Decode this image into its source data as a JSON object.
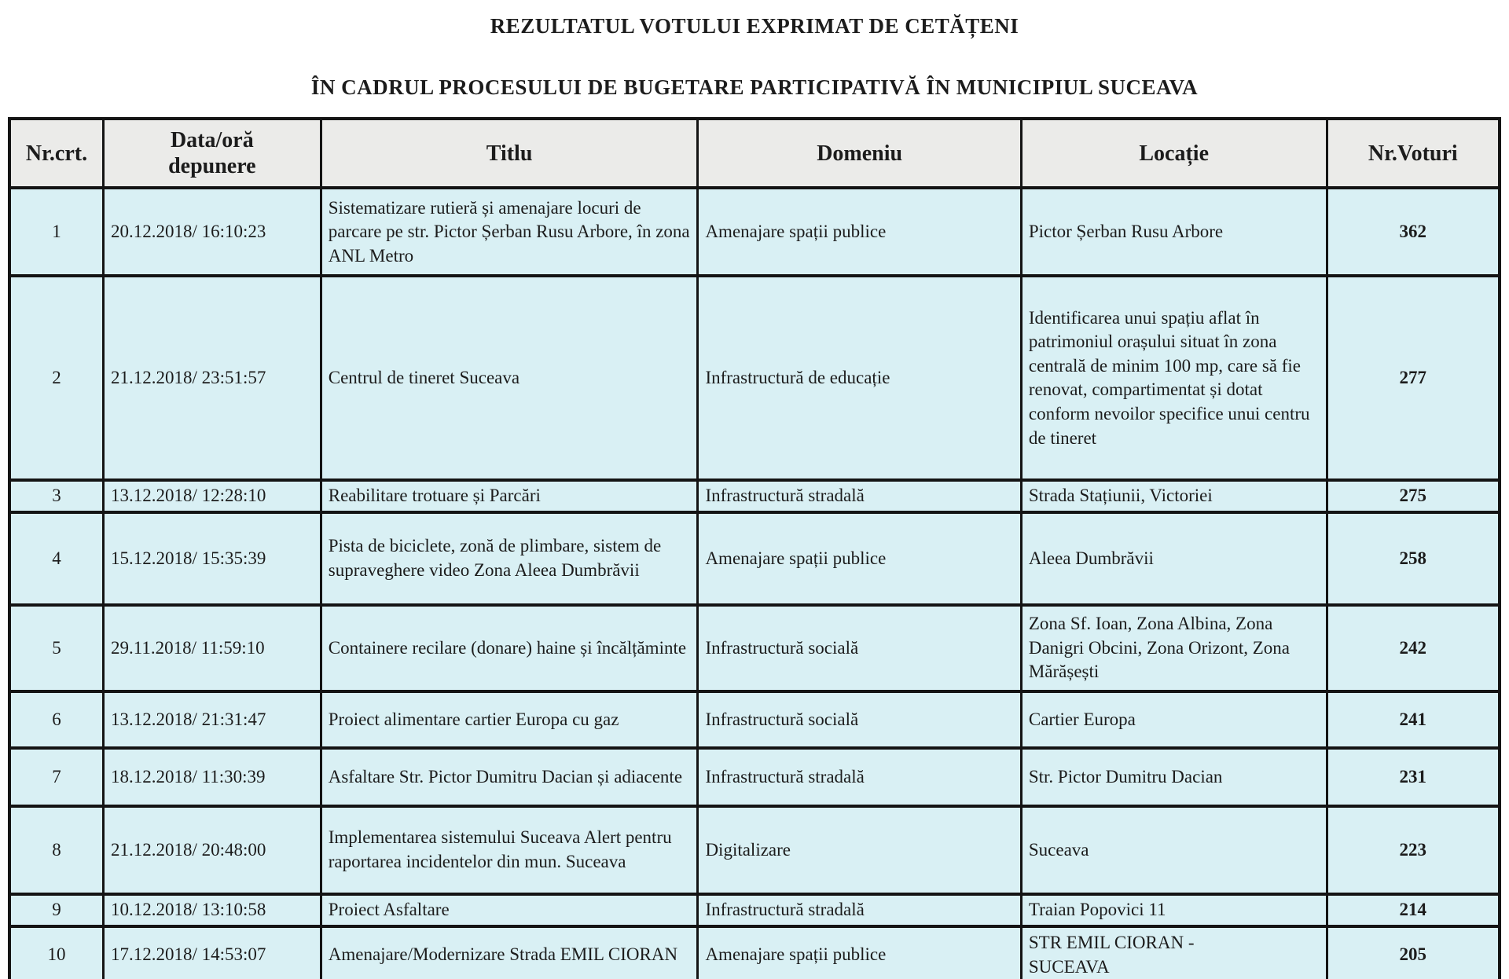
{
  "title": {
    "line1": "REZULTATUL VOTULUI EXPRIMAT DE  CETĂȚENI",
    "line2": "ÎN CADRUL PROCESULUI DE BUGETARE PARTICIPATIVĂ ÎN MUNICIPIUL SUCEAVA"
  },
  "colors": {
    "header_background": "#ebebe9",
    "cell_background": "#d9f0f4",
    "border": "#141414",
    "text": "#1c1c1c"
  },
  "table": {
    "columns": {
      "nr": "Nr.crt.",
      "data": "Data/oră\ndepunere",
      "titlu": "Titlu",
      "domeniu": "Domeniu",
      "locatie": "Locație",
      "voturi": "Nr.Voturi"
    },
    "rows": [
      {
        "nr": "1",
        "data": "20.12.2018/ 16:10:23",
        "titlu": "Sistematizare rutieră și amenajare locuri de parcare pe str. Pictor Șerban Rusu Arbore, în zona ANL Metro",
        "domeniu": "Amenajare spații publice",
        "locatie": "Pictor Șerban Rusu Arbore",
        "voturi": "362"
      },
      {
        "nr": "2",
        "data": "21.12.2018/ 23:51:57",
        "titlu": "Centrul de tineret Suceava",
        "domeniu": "Infrastructură de educație",
        "locatie": "Identificarea unui spațiu aflat în patrimoniul orașului situat în zona centrală de minim 100 mp, care să fie renovat, compartimentat și dotat conform nevoilor specifice unui centru de tineret",
        "voturi": "277"
      },
      {
        "nr": "3",
        "data": "13.12.2018/ 12:28:10",
        "titlu": "Reabilitare trotuare și Parcări",
        "domeniu": "Infrastructură stradală",
        "locatie": "Strada Stațiunii, Victoriei",
        "voturi": "275"
      },
      {
        "nr": "4",
        "data": "15.12.2018/ 15:35:39",
        "titlu": "Pista de biciclete, zonă de plimbare, sistem de supraveghere video Zona Aleea Dumbrăvii",
        "domeniu": "Amenajare spații publice",
        "locatie": "Aleea Dumbrăvii",
        "voturi": "258"
      },
      {
        "nr": "5",
        "data": "29.11.2018/ 11:59:10",
        "titlu": "Containere recilare (donare) haine și încălțăminte",
        "domeniu": "Infrastructură socială",
        "locatie": "Zona Sf. Ioan, Zona Albina, Zona Danigri Obcini, Zona Orizont, Zona Mărășești",
        "voturi": "242"
      },
      {
        "nr": "6",
        "data": "13.12.2018/ 21:31:47",
        "titlu": "Proiect alimentare cartier Europa cu gaz",
        "domeniu": "Infrastructură socială",
        "locatie": "Cartier Europa",
        "voturi": "241"
      },
      {
        "nr": "7",
        "data": "18.12.2018/ 11:30:39",
        "titlu": "Asfaltare  Str. Pictor Dumitru Dacian și adiacente",
        "domeniu": "Infrastructură stradală",
        "locatie": "Str. Pictor Dumitru Dacian",
        "voturi": "231"
      },
      {
        "nr": "8",
        "data": "21.12.2018/ 20:48:00",
        "titlu": "Implementarea sistemului Suceava Alert pentru raportarea incidentelor din mun. Suceava",
        "domeniu": "Digitalizare",
        "locatie": "Suceava",
        "voturi": "223"
      },
      {
        "nr": "9",
        "data": "10.12.2018/ 13:10:58",
        "titlu": "Proiect Asfaltare",
        "domeniu": "Infrastructură stradală",
        "locatie": "Traian Popovici 11",
        "voturi": "214"
      },
      {
        "nr": "10",
        "data": "17.12.2018/ 14:53:07",
        "titlu": "Amenajare/Modernizare Strada EMIL CIORAN",
        "domeniu": "Amenajare spații publice",
        "locatie": "STR EMIL CIORAN -\nSUCEAVA",
        "voturi": "205"
      }
    ]
  }
}
